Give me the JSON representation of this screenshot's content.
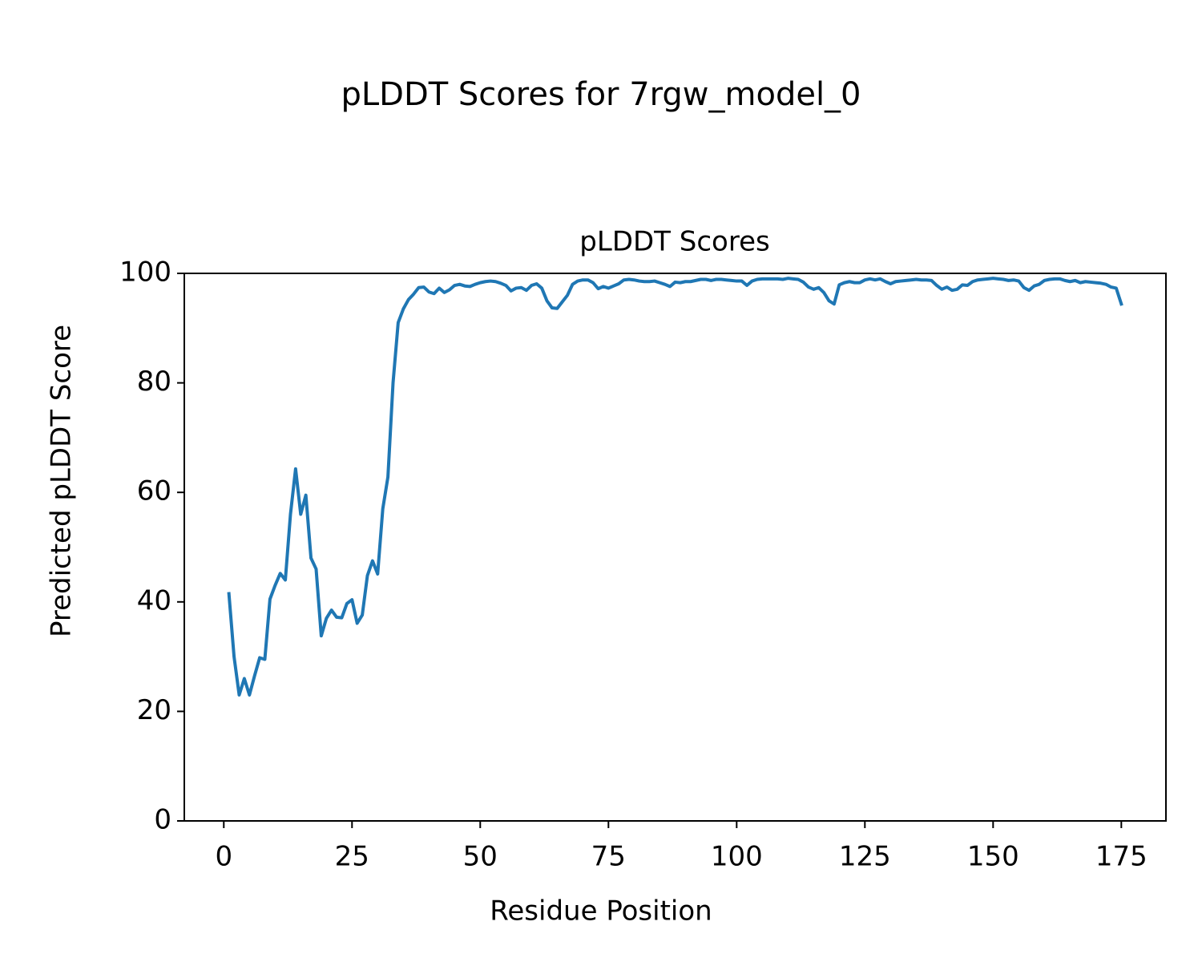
{
  "chart_data": {
    "type": "line",
    "title": "pLDDT Scores for 7rgw_model_0",
    "subtitle": "pLDDT Scores",
    "x_label": "Residue Position",
    "y_label": "Predicted pLDDT Score",
    "color": "#1f77b4",
    "xlim": [
      -7.7,
      183.7
    ],
    "ylim": [
      0,
      100
    ],
    "xticks": [
      0,
      25,
      50,
      75,
      100,
      125,
      150,
      175
    ],
    "yticks": [
      0,
      20,
      40,
      60,
      80,
      100
    ],
    "grid": false,
    "x": [
      1,
      2,
      3,
      4,
      5,
      6,
      7,
      8,
      9,
      10,
      11,
      12,
      13,
      14,
      15,
      16,
      17,
      18,
      19,
      20,
      21,
      22,
      23,
      24,
      25,
      26,
      27,
      28,
      29,
      30,
      31,
      32,
      33,
      34,
      35,
      36,
      37,
      38,
      39,
      40,
      41,
      42,
      43,
      44,
      45,
      46,
      47,
      48,
      49,
      50,
      51,
      52,
      53,
      54,
      55,
      56,
      57,
      58,
      59,
      60,
      61,
      62,
      63,
      64,
      65,
      66,
      67,
      68,
      69,
      70,
      71,
      72,
      73,
      74,
      75,
      76,
      77,
      78,
      79,
      80,
      81,
      82,
      83,
      84,
      85,
      86,
      87,
      88,
      89,
      90,
      91,
      92,
      93,
      94,
      95,
      96,
      97,
      98,
      99,
      100,
      101,
      102,
      103,
      104,
      105,
      106,
      107,
      108,
      109,
      110,
      111,
      112,
      113,
      114,
      115,
      116,
      117,
      118,
      119,
      120,
      121,
      122,
      123,
      124,
      125,
      126,
      127,
      128,
      129,
      130,
      131,
      132,
      133,
      134,
      135,
      136,
      137,
      138,
      139,
      140,
      141,
      142,
      143,
      144,
      145,
      146,
      147,
      148,
      149,
      150,
      151,
      152,
      153,
      154,
      155,
      156,
      157,
      158,
      159,
      160,
      161,
      162,
      163,
      164,
      165,
      166,
      167,
      168,
      169,
      170,
      171,
      172,
      173,
      174,
      175
    ],
    "values": [
      41.5,
      30,
      23,
      26,
      23,
      26.5,
      29.8,
      29.5,
      40.5,
      43,
      45.2,
      44,
      56,
      64.3,
      56,
      59.5,
      48,
      46,
      33.8,
      37,
      38.5,
      37.2,
      37.1,
      39.7,
      40.4,
      36.1,
      37.6,
      44.8,
      47.5,
      45.1,
      57,
      62.8,
      80,
      91,
      93.5,
      95.2,
      96.2,
      97.4,
      97.5,
      96.6,
      96.3,
      97.3,
      96.5,
      97,
      97.8,
      98,
      97.7,
      97.6,
      98,
      98.3,
      98.5,
      98.6,
      98.5,
      98.2,
      97.8,
      96.8,
      97.3,
      97.4,
      96.9,
      97.8,
      98.1,
      97.3,
      95,
      93.7,
      93.6,
      94.8,
      96,
      98,
      98.6,
      98.8,
      98.8,
      98.3,
      97.2,
      97.6,
      97.3,
      97.7,
      98.1,
      98.8,
      98.9,
      98.8,
      98.6,
      98.5,
      98.5,
      98.6,
      98.3,
      98,
      97.6,
      98.4,
      98.3,
      98.5,
      98.5,
      98.7,
      98.9,
      98.9,
      98.7,
      98.9,
      98.9,
      98.8,
      98.7,
      98.6,
      98.6,
      97.8,
      98.6,
      98.9,
      99,
      99,
      99,
      99,
      98.9,
      99.1,
      99,
      98.9,
      98.4,
      97.5,
      97.1,
      97.4,
      96.5,
      95,
      94.4,
      97.9,
      98.3,
      98.5,
      98.3,
      98.3,
      98.8,
      99,
      98.8,
      99,
      98.5,
      98.1,
      98.5,
      98.6,
      98.7,
      98.8,
      98.9,
      98.8,
      98.8,
      98.7,
      97.8,
      97.1,
      97.5,
      96.9,
      97.1,
      97.9,
      97.8,
      98.5,
      98.8,
      98.9,
      99,
      99.1,
      99,
      98.9,
      98.7,
      98.8,
      98.6,
      97.4,
      96.9,
      97.7,
      98,
      98.7,
      98.9,
      99,
      99,
      98.7,
      98.5,
      98.7,
      98.3,
      98.5,
      98.4,
      98.3,
      98.2,
      98,
      97.5,
      97.3,
      94.4
    ]
  }
}
